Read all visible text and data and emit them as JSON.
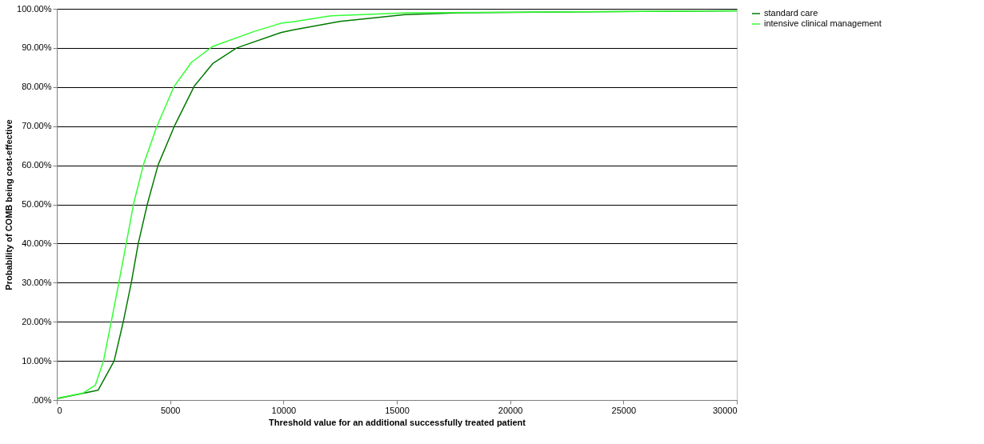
{
  "chart_data": {
    "type": "line",
    "xlabel": "Threshold value for an additional successfully treated patient",
    "ylabel": "Probability of COMB being cost-effective",
    "xlim": [
      0,
      30000
    ],
    "xticks": [
      0,
      5000,
      10000,
      15000,
      20000,
      25000,
      30000
    ],
    "ylim": [
      0,
      100
    ],
    "yticks": [
      {
        "value": 0,
        "label": ".00%"
      },
      {
        "value": 10,
        "label": "10.00%"
      },
      {
        "value": 20,
        "label": "20.00%"
      },
      {
        "value": 30,
        "label": "30.00%"
      },
      {
        "value": 40,
        "label": "40.00%"
      },
      {
        "value": 50,
        "label": "50.00%"
      },
      {
        "value": 60,
        "label": "60.00%"
      },
      {
        "value": 70,
        "label": "70.00%"
      },
      {
        "value": 80,
        "label": "80.00%"
      },
      {
        "value": 90,
        "label": "90.00%"
      },
      {
        "value": 100,
        "label": "100.00%"
      }
    ],
    "grid": "y",
    "legend": "right",
    "marker": "none",
    "line_style": "solid",
    "series": [
      {
        "name": "standard care",
        "color": "#007a00",
        "x": [
          0,
          60,
          1820,
          2530,
          2940,
          3290,
          3590,
          4000,
          4470,
          5180,
          6060,
          6880,
          7940,
          9880,
          10410,
          12490,
          15370,
          17720,
          30000
        ],
        "values": [
          0.3,
          0.4,
          2.5,
          10.0,
          20.2,
          30.1,
          39.9,
          50.2,
          60.1,
          69.9,
          80.2,
          86,
          90.0,
          93.9,
          94.6,
          96.8,
          98.5,
          99.0,
          99.5
        ]
      },
      {
        "name": "intensive clinical management",
        "color": "#33ff33",
        "x": [
          0,
          60,
          1170,
          1700,
          2060,
          2410,
          2740,
          3060,
          3390,
          3820,
          4410,
          5180,
          5940,
          6880,
          8650,
          9880,
          10410,
          12100,
          15630,
          30000
        ],
        "values": [
          0.3,
          0.5,
          1.8,
          3.8,
          10.0,
          20.2,
          30.1,
          39.9,
          50.2,
          60.1,
          69.9,
          80.2,
          86.3,
          90.4,
          94.1,
          96.3,
          96.7,
          98.2,
          99.0,
          99.5
        ]
      }
    ]
  }
}
